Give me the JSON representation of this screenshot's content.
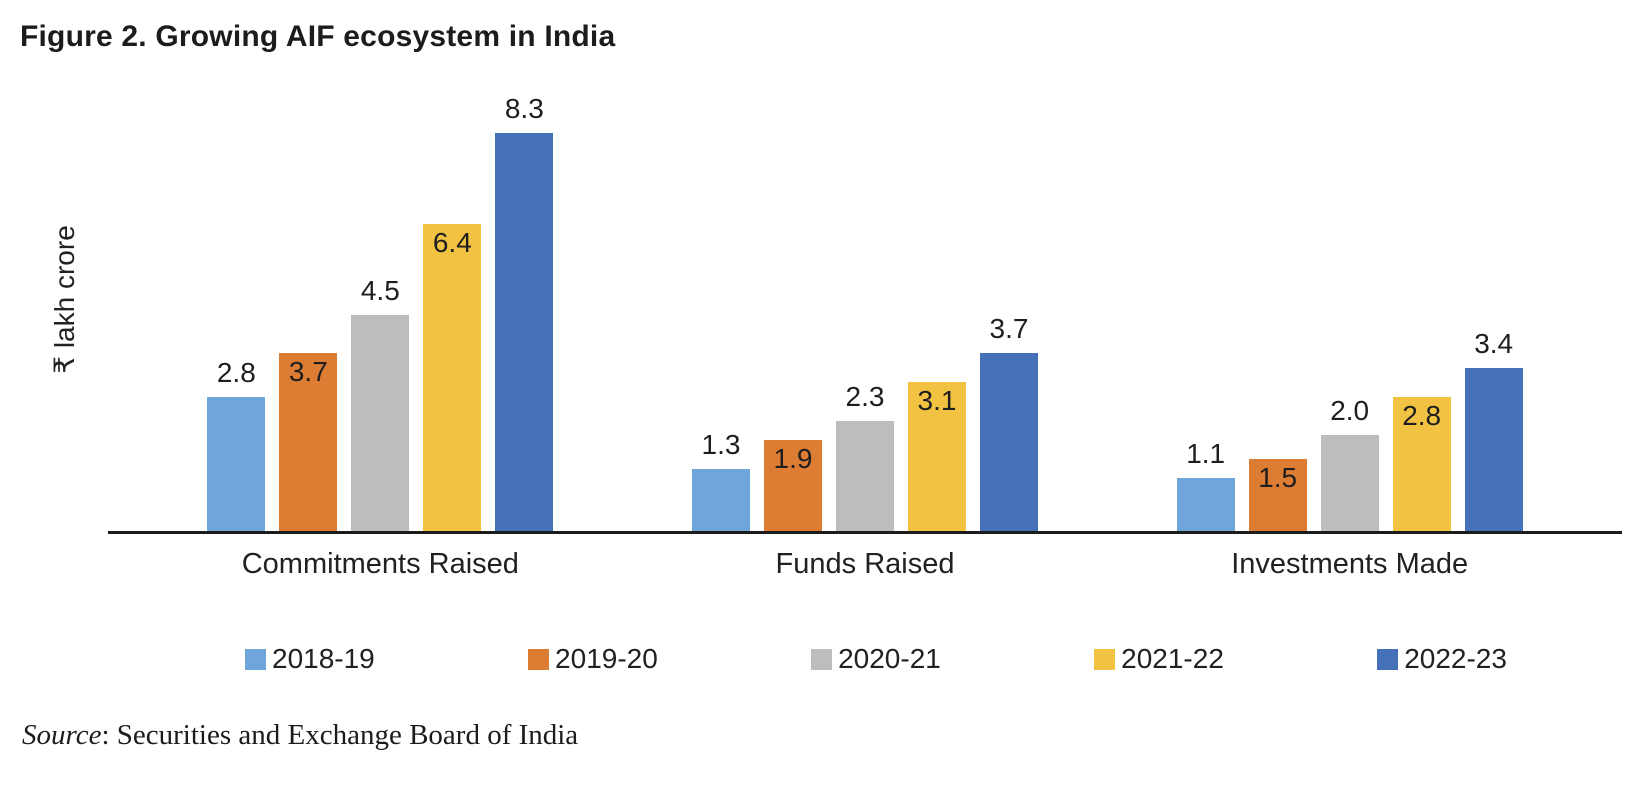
{
  "title": "Figure 2. Growing AIF ecosystem in India",
  "source": {
    "prefix": "Source",
    "rest": ": Securities and Exchange Board of India"
  },
  "chart_data": {
    "type": "bar",
    "title": "Figure 2. Growing AIF ecosystem in India",
    "categories": [
      "Commitments Raised",
      "Funds Raised",
      "Investments Made"
    ],
    "series": [
      {
        "name": "2018-19",
        "color": "#6EA6D9",
        "values": [
          2.8,
          1.3,
          1.1
        ],
        "label_position": "above"
      },
      {
        "name": "2019-20",
        "color": "#DD7D33",
        "values": [
          3.7,
          1.9,
          1.5
        ],
        "label_position": "inside"
      },
      {
        "name": "2020-21",
        "color": "#BDBDBD",
        "values": [
          4.5,
          2.3,
          2.0
        ],
        "label_position": "above"
      },
      {
        "name": "2021-22",
        "color": "#F2C342",
        "values": [
          6.4,
          3.1,
          2.8
        ],
        "label_position": "inside"
      },
      {
        "name": "2022-23",
        "color": "#4471B8",
        "values": [
          8.3,
          3.7,
          3.4
        ],
        "label_position": "above"
      }
    ],
    "ylabel": "₹ lakh crore",
    "xlabel": "",
    "ylim": [
      0,
      8.8
    ],
    "grid": false,
    "legend_position": "bottom",
    "source": "Source: Securities and Exchange Board of India"
  }
}
